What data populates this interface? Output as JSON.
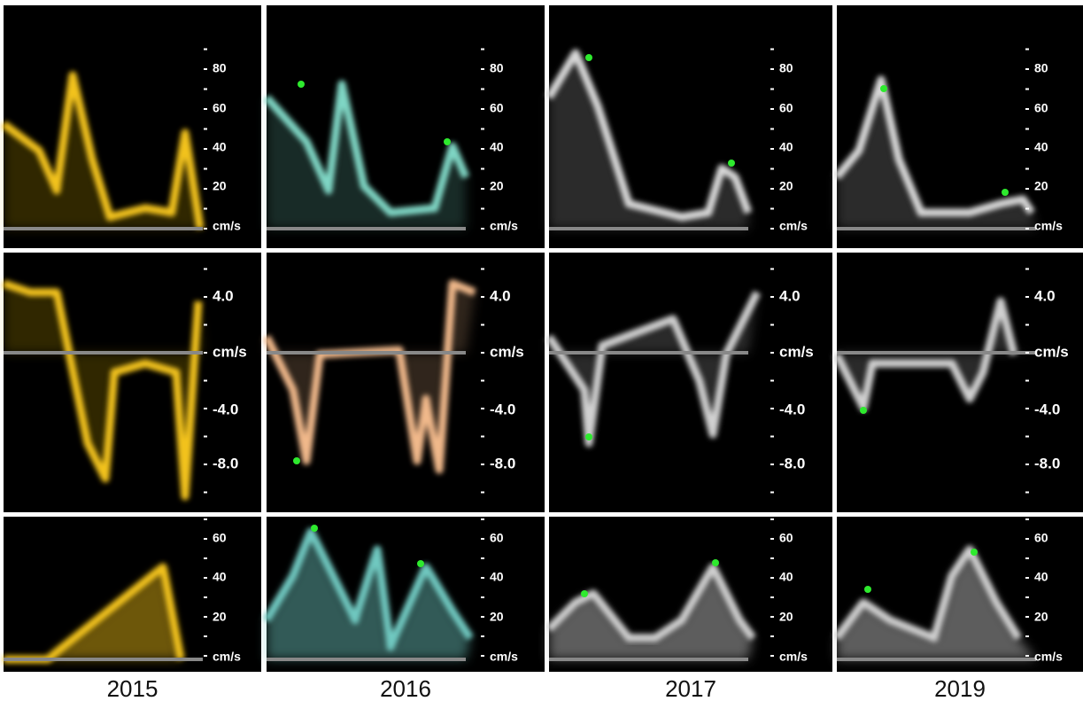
{
  "panels": [
    {
      "year": "2015",
      "rows": [
        {
          "ticks": [
            "80",
            "60",
            "40",
            "20",
            "cm/s"
          ]
        },
        {
          "ticks": [
            "4.0",
            "cm/s",
            "-4.0",
            "-8.0"
          ]
        },
        {
          "ticks": [
            "60",
            "40",
            "20",
            "cm/s"
          ]
        }
      ]
    },
    {
      "year": "2016",
      "rows": [
        {
          "ticks": [
            "80",
            "60",
            "40",
            "20",
            "cm/s"
          ]
        },
        {
          "ticks": [
            "4.0",
            "cm/s",
            "-4.0",
            "-8.0"
          ]
        },
        {
          "ticks": [
            "60",
            "40",
            "20",
            "cm/s"
          ]
        }
      ]
    },
    {
      "year": "2017",
      "rows": [
        {
          "ticks": [
            "80",
            "60",
            "40",
            "20",
            "cm/s"
          ]
        },
        {
          "ticks": [
            "4.0",
            "cm/s",
            "-4.0",
            "-8.0"
          ]
        },
        {
          "ticks": [
            "60",
            "40",
            "20",
            "cm/s"
          ]
        }
      ]
    },
    {
      "year": "2019",
      "rows": [
        {
          "ticks": [
            "80",
            "60",
            "40",
            "20",
            "cm/s"
          ]
        },
        {
          "ticks": [
            "4.0",
            "cm/s",
            "-4.0",
            "-8.0"
          ]
        },
        {
          "ticks": [
            "60",
            "40",
            "20",
            "cm/s"
          ]
        }
      ]
    }
  ]
}
